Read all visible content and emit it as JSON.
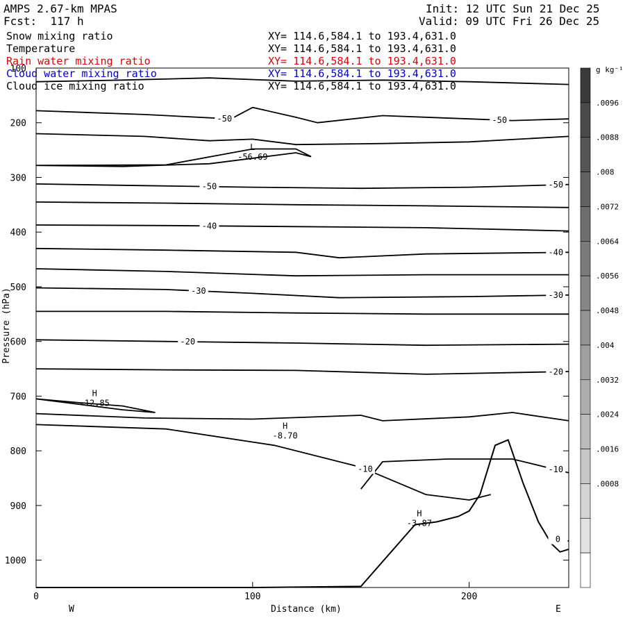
{
  "header": {
    "model": "AMPS 2.67-km MPAS",
    "forecast": "Fcst:  117 h",
    "init": "Init: 12 UTC Sun 21 Dec 25",
    "valid": "Valid: 09 UTC Fri 26 Dec 25"
  },
  "fields": [
    {
      "name": "Snow mixing ratio",
      "xy": "XY= 114.6,584.1 to 193.4,631.0",
      "color": "#000000"
    },
    {
      "name": "Temperature",
      "xy": "XY= 114.6,584.1 to 193.4,631.0",
      "color": "#000000"
    },
    {
      "name": "Rain water mixing ratio",
      "xy": "XY= 114.6,584.1 to 193.4,631.0",
      "color": "#e00000"
    },
    {
      "name": "Cloud water mixing ratio",
      "xy": "XY= 114.6,584.1 to 193.4,631.0",
      "color": "#0000cc"
    },
    {
      "name": "Cloud ice mixing ratio",
      "xy": "XY= 114.6,584.1 to 193.4,631.0",
      "color": "#000000"
    }
  ],
  "chart_data": {
    "type": "cross-section contour",
    "ylabel": "Pressure (hPa)",
    "xlabel": "Distance (km)",
    "x_range": [
      0,
      246
    ],
    "y_range": [
      100,
      1050
    ],
    "y_ticks": [
      100,
      200,
      300,
      400,
      500,
      600,
      700,
      800,
      900,
      1000
    ],
    "x_ticks": [
      0,
      100,
      200
    ],
    "left_end_label": "W",
    "right_end_label": "E",
    "isotherms": [
      {
        "points": [
          [
            0,
            125
          ],
          [
            40,
            122
          ],
          [
            80,
            118
          ],
          [
            120,
            124
          ],
          [
            160,
            122
          ],
          [
            200,
            125
          ],
          [
            246,
            130
          ]
        ]
      },
      {
        "points": [
          [
            0,
            178
          ],
          [
            50,
            185
          ],
          [
            90,
            193
          ],
          [
            100,
            172
          ],
          [
            120,
            190
          ],
          [
            130,
            200
          ],
          [
            160,
            187
          ],
          [
            200,
            193
          ],
          [
            220,
            196
          ],
          [
            246,
            193
          ]
        ],
        "labels": [
          {
            "x": 87,
            "text": "-50"
          },
          {
            "x": 214,
            "text": "-50"
          }
        ]
      },
      {
        "points": [
          [
            0,
            220
          ],
          [
            50,
            225
          ],
          [
            80,
            233
          ],
          [
            100,
            230
          ],
          [
            120,
            240
          ],
          [
            160,
            238
          ],
          [
            200,
            235
          ],
          [
            246,
            225
          ]
        ]
      },
      {
        "points": [
          [
            0,
            278
          ],
          [
            40,
            280
          ],
          [
            80,
            275
          ],
          [
            120,
            255
          ],
          [
            127,
            262
          ],
          [
            120,
            248
          ],
          [
            100,
            248
          ],
          [
            60,
            277
          ],
          [
            0,
            278
          ]
        ]
      },
      {
        "points": [
          [
            0,
            312
          ],
          [
            50,
            315
          ],
          [
            100,
            318
          ],
          [
            150,
            320
          ],
          [
            200,
            318
          ],
          [
            246,
            313
          ]
        ],
        "labels": [
          {
            "x": 80,
            "text": "-50"
          },
          {
            "x": 240,
            "text": "-50"
          }
        ]
      },
      {
        "points": [
          [
            0,
            345
          ],
          [
            60,
            347
          ],
          [
            120,
            350
          ],
          [
            180,
            352
          ],
          [
            246,
            355
          ]
        ]
      },
      {
        "points": [
          [
            0,
            387
          ],
          [
            60,
            388
          ],
          [
            120,
            390
          ],
          [
            180,
            392
          ],
          [
            246,
            398
          ]
        ],
        "labels": [
          {
            "x": 80,
            "text": "-40"
          }
        ]
      },
      {
        "points": [
          [
            0,
            430
          ],
          [
            60,
            433
          ],
          [
            120,
            437
          ],
          [
            140,
            447
          ],
          [
            180,
            440
          ],
          [
            246,
            437
          ]
        ],
        "labels": [
          {
            "x": 240,
            "text": "-40"
          }
        ]
      },
      {
        "points": [
          [
            0,
            467
          ],
          [
            60,
            472
          ],
          [
            120,
            480
          ],
          [
            180,
            478
          ],
          [
            246,
            478
          ]
        ]
      },
      {
        "points": [
          [
            0,
            502
          ],
          [
            60,
            505
          ],
          [
            100,
            512
          ],
          [
            140,
            520
          ],
          [
            200,
            518
          ],
          [
            246,
            515
          ]
        ],
        "labels": [
          {
            "x": 75,
            "text": "-30"
          },
          {
            "x": 240,
            "text": "-30"
          }
        ]
      },
      {
        "points": [
          [
            0,
            545
          ],
          [
            60,
            545
          ],
          [
            120,
            548
          ],
          [
            180,
            550
          ],
          [
            246,
            550
          ]
        ]
      },
      {
        "points": [
          [
            0,
            597
          ],
          [
            60,
            600
          ],
          [
            120,
            603
          ],
          [
            180,
            607
          ],
          [
            246,
            605
          ]
        ],
        "labels": [
          {
            "x": 70,
            "text": "-20"
          }
        ]
      },
      {
        "points": [
          [
            0,
            650
          ],
          [
            60,
            652
          ],
          [
            120,
            653
          ],
          [
            180,
            660
          ],
          [
            246,
            655
          ]
        ],
        "labels": [
          {
            "x": 240,
            "text": "-20"
          }
        ]
      },
      {
        "points": [
          [
            0,
            705
          ],
          [
            20,
            712
          ],
          [
            40,
            718
          ],
          [
            55,
            730
          ],
          [
            40,
            725
          ],
          [
            0,
            705
          ]
        ]
      },
      {
        "points": [
          [
            0,
            732
          ],
          [
            50,
            740
          ],
          [
            100,
            742
          ],
          [
            150,
            735
          ],
          [
            160,
            745
          ],
          [
            200,
            738
          ],
          [
            220,
            730
          ],
          [
            246,
            745
          ]
        ]
      },
      {
        "points": [
          [
            0,
            752
          ],
          [
            60,
            760
          ],
          [
            110,
            790
          ],
          [
            150,
            830
          ],
          [
            180,
            880
          ],
          [
            200,
            890
          ],
          [
            210,
            880
          ]
        ],
        "labels": [
          {
            "x": 152,
            "text": "-10"
          }
        ]
      },
      {
        "points": [
          [
            150,
            870
          ],
          [
            160,
            820
          ],
          [
            190,
            815
          ],
          [
            220,
            815
          ],
          [
            246,
            840
          ]
        ],
        "labels": [
          {
            "x": 240,
            "text": "-10"
          }
        ]
      },
      {
        "points": [
          [
            238,
            960
          ],
          [
            246,
            965
          ]
        ],
        "labels": [
          {
            "x": 241,
            "text": "0"
          }
        ]
      }
    ],
    "extrema": [
      {
        "type": "L",
        "x": 100,
        "p": 250,
        "value": "-56.69"
      },
      {
        "type": "H",
        "x": 27,
        "p": 700,
        "value": "-12.85"
      },
      {
        "type": "H",
        "x": 115,
        "p": 760,
        "value": "-8.70"
      },
      {
        "type": "H",
        "x": 177,
        "p": 920,
        "value": "-3.87"
      }
    ],
    "terrain_profile": [
      [
        0,
        1050
      ],
      [
        100,
        1050
      ],
      [
        150,
        1048
      ],
      [
        175,
        935
      ],
      [
        185,
        930
      ],
      [
        195,
        920
      ],
      [
        200,
        910
      ],
      [
        205,
        880
      ],
      [
        212,
        790
      ],
      [
        218,
        780
      ],
      [
        225,
        860
      ],
      [
        232,
        930
      ],
      [
        238,
        970
      ],
      [
        242,
        985
      ],
      [
        246,
        980
      ]
    ],
    "colorbar": {
      "unit": "g kg⁻¹",
      "labels": [
        ".0096",
        ".0088",
        ".008",
        ".0072",
        ".0064",
        ".0056",
        ".0048",
        ".004",
        ".0032",
        ".0024",
        ".0016",
        ".0008"
      ],
      "colors": [
        "#3a3a3a",
        "#4a4a4a",
        "#555555",
        "#626262",
        "#6e6e6e",
        "#7a7a7a",
        "#868686",
        "#939393",
        "#a0a0a0",
        "#adadad",
        "#bababa",
        "#c7c7c7",
        "#d4d4d4",
        "#e1e1e1",
        "#ffffff"
      ]
    }
  }
}
